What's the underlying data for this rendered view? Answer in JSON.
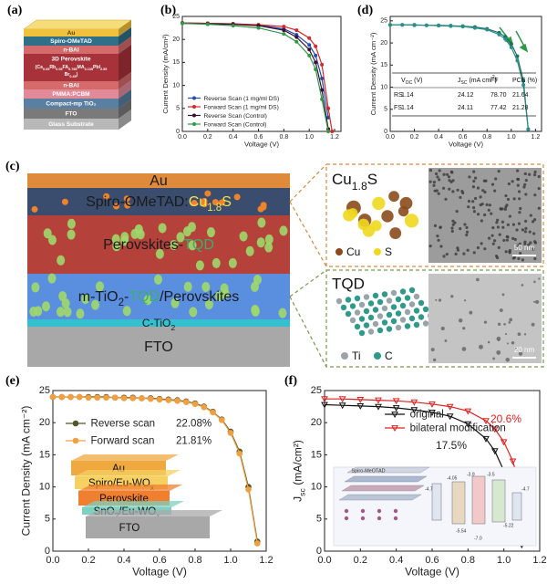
{
  "labels": {
    "a": "(a)",
    "b": "(b)",
    "c": "(c)",
    "d": "(d)",
    "e": "(e)",
    "f": "(f)"
  },
  "device_a": {
    "layers": [
      {
        "label": "Au",
        "color": "#f0c23c"
      },
      {
        "label": "Spiro-OMeTAD",
        "color": "#2f6f8a"
      },
      {
        "label": "n-BAI",
        "color": "#d46a6a"
      },
      {
        "label": "3D Perovskite",
        "formula": [
          [
            "(Cs",
            {
              "text": "0.05",
              "baseline": "sub"
            },
            "Rb",
            {
              "text": "0.05",
              "baseline": "sub"
            },
            "FA",
            {
              "text": "0.765",
              "baseline": "sub"
            },
            "MA",
            {
              "text": "0.135",
              "baseline": "sub"
            },
            "PbI",
            {
              "text": "2.55",
              "baseline": "sub"
            }
          ],
          [
            "Br",
            {
              "text": "0.45",
              "baseline": "sub"
            },
            ")"
          ]
        ],
        "color": "#a8323a"
      },
      {
        "label": "n-BAI",
        "color": "#d46a6a"
      },
      {
        "label": "PMMA:PCBM",
        "color": "#e28a9a"
      },
      {
        "label": "Compact-mp TiO₂",
        "color": "#5a7fa0"
      },
      {
        "label": "FTO",
        "color": "#7a7a7a"
      },
      {
        "label": "Glass Substrate",
        "color": "#b8b8b8"
      }
    ]
  },
  "device_c": {
    "layers": [
      {
        "label": "Au",
        "color": "#e08a3c"
      },
      {
        "label": [
          "Spiro-OMeTAD:",
          {
            "text": "Cu",
            "color": "#f2e34a"
          },
          {
            "text": "1.8",
            "baseline": "sub",
            "color": "#f2e34a"
          },
          {
            "text": "S",
            "color": "#f2e34a"
          }
        ],
        "color": "#3a4d6e"
      },
      {
        "label": [
          "Perovskites-",
          {
            "text": "TQD",
            "color": "#3cae6a"
          }
        ],
        "color": "#b4423a"
      },
      {
        "label": [
          "m-TiO",
          {
            "text": "2",
            "baseline": "sub"
          },
          "-",
          {
            "text": "TQD",
            "color": "#3cae6a"
          },
          "/Perovskites"
        ],
        "color": "#5a8fe0"
      },
      {
        "label": [
          "C-TiO",
          {
            "text": "2",
            "baseline": "sub"
          }
        ],
        "color": "#35c0d0"
      },
      {
        "label": "FTO",
        "color": "#a8a8a8"
      }
    ],
    "cu_inset": {
      "title": [
        "Cu",
        {
          "text": "1.8",
          "baseline": "sub"
        },
        "S"
      ],
      "legend": [
        {
          "label": "Cu",
          "color": "#8b4a1c"
        },
        {
          "label": "S",
          "color": "#f0d820"
        }
      ],
      "scale": "50 nm"
    },
    "tqd_inset": {
      "title": "TQD",
      "legend": [
        {
          "label": "Ti",
          "color": "#9aa4a8"
        },
        {
          "label": "C",
          "color": "#2f9a8a"
        }
      ],
      "scale": "20 nm"
    }
  },
  "inset_e": {
    "layers": [
      {
        "label": "Au",
        "color": "#f0a840"
      },
      {
        "label": [
          "Spiro/Eu-WO",
          {
            "text": "x",
            "baseline": "sub"
          }
        ],
        "color": "#f6d060"
      },
      {
        "label": "Perovskite",
        "color": "#f08030"
      },
      {
        "label": [
          "SnO",
          {
            "text": "2",
            "baseline": "sub"
          },
          "/Eu-WO",
          {
            "text": "x",
            "baseline": "sub"
          }
        ],
        "color": "#7fd0c0"
      },
      {
        "label": "FTO",
        "color": "#a8a8a8"
      }
    ]
  },
  "inset_f": {
    "title": "Spiro-MeOTAD",
    "levels": [
      "-4.7",
      "-4.05",
      "-3.9",
      "-3.5",
      "-5.54",
      "-7.0",
      "-4.7",
      "-5.22"
    ]
  },
  "table_d": {
    "header": [
      [
        "V",
        {
          "text": "OC",
          "baseline": "sub"
        },
        " (V)"
      ],
      [
        "J",
        {
          "text": "SC",
          "baseline": "sub"
        },
        " (mA cm",
        {
          "text": "-2",
          "baseline": "super"
        },
        ")"
      ],
      "FF",
      "PCE (%)"
    ],
    "rows": [
      [
        "RS",
        "1.14",
        "24.12",
        "78.70",
        "21.64"
      ],
      [
        "FS",
        "1.14",
        "24.11",
        "77.42",
        "21.28"
      ]
    ]
  },
  "chart_data": [
    {
      "type": "line",
      "xlabel": "Voltage (V)",
      "ylabel": "Current Density (mA/cm²)",
      "xlim": [
        0,
        1.25
      ],
      "xticks": [
        {
          "value": 0,
          "label": "0.0"
        },
        0.2,
        0.4,
        0.6,
        0.8,
        {
          "value": 1,
          "label": "1.0"
        },
        1.2
      ],
      "ylim": [
        0,
        25
      ],
      "yticks": [
        0,
        5,
        10,
        15,
        20,
        25
      ],
      "legend": "lower left",
      "x": [
        0,
        0.2,
        0.4,
        0.6,
        0.8,
        0.9,
        1.0,
        1.05,
        1.1,
        1.15,
        1.18
      ],
      "series": [
        {
          "name": "Reverse Scan (1 mg/ml DS)",
          "color": "#1f4fb0",
          "marker": "circle",
          "values": [
            23.6,
            23.5,
            23.4,
            23.1,
            22.3,
            21.0,
            18.8,
            16.5,
            11.5,
            3,
            null
          ]
        },
        {
          "name": "Forward Scan (1 mg/ml DS)",
          "color": "#d62828",
          "marker": "circle",
          "values": [
            23.6,
            23.5,
            23.4,
            23.2,
            22.8,
            22.0,
            20.3,
            18.5,
            14.5,
            5,
            0
          ]
        },
        {
          "name": "Reverse Scan (Control)",
          "color": "#3a1030",
          "marker": "circle",
          "values": [
            23.5,
            23.4,
            23.3,
            23.0,
            22.0,
            20.5,
            17.8,
            15,
            9,
            0.5,
            null
          ]
        },
        {
          "name": "Forward Scan (Control)",
          "color": "#2e9a48",
          "marker": "circle",
          "values": [
            23.5,
            23.3,
            23.0,
            22.5,
            21.2,
            19.5,
            16.5,
            13.5,
            7,
            0,
            null
          ]
        }
      ]
    },
    {
      "type": "line",
      "xlabel": "Voltage (V)",
      "ylabel": "Current Density (mA cm⁻²)",
      "xlim": [
        0,
        1.25
      ],
      "xticks": [
        {
          "value": 0,
          "label": "0.0"
        },
        0.2,
        0.4,
        0.6,
        0.8,
        {
          "value": 1,
          "label": "1.0"
        },
        1.2
      ],
      "ylim": [
        0,
        26
      ],
      "yticks": [
        0,
        5,
        10,
        15,
        20,
        25
      ],
      "x": [
        0,
        0.1,
        0.2,
        0.3,
        0.4,
        0.5,
        0.6,
        0.7,
        0.8,
        0.9,
        0.95,
        1.0,
        1.05,
        1.1,
        1.14
      ],
      "series": [
        {
          "color": "#1f6f5a",
          "marker": "circle",
          "values": [
            24.1,
            24.1,
            24.1,
            24.0,
            24.0,
            23.9,
            23.8,
            23.6,
            23.2,
            22.3,
            21.4,
            19.8,
            17.0,
            11.5,
            0.5
          ]
        },
        {
          "color": "#2a8f8a",
          "marker": "circle",
          "values": [
            24.1,
            24.1,
            24.0,
            24.0,
            23.9,
            23.8,
            23.7,
            23.4,
            23.0,
            21.9,
            20.9,
            19.0,
            16.0,
            10.5,
            0.5
          ]
        }
      ]
    },
    {
      "type": "line",
      "xlabel": "Voltage (V)",
      "ylabel": "Current Density (mA cm⁻²)",
      "xlim": [
        0,
        1.2
      ],
      "xticks": [
        {
          "value": 0,
          "label": "0.0"
        },
        0.2,
        0.4,
        0.6,
        0.8,
        {
          "value": 1,
          "label": "1.0"
        },
        1.2
      ],
      "ylim": [
        0,
        25
      ],
      "yticks": [
        0,
        5,
        10,
        15,
        20,
        25
      ],
      "legend": "left",
      "x": [
        0,
        0.05,
        0.1,
        0.15,
        0.2,
        0.25,
        0.3,
        0.35,
        0.4,
        0.45,
        0.5,
        0.55,
        0.6,
        0.65,
        0.7,
        0.75,
        0.8,
        0.85,
        0.9,
        0.95,
        1.0,
        1.05,
        1.1,
        1.15
      ],
      "series": [
        {
          "name": "Reverse scan",
          "pce": "22.08%",
          "color": "#55552a",
          "marker": "circle",
          "values": [
            24.0,
            24.0,
            24.0,
            24.0,
            24.0,
            24.0,
            24.0,
            23.9,
            23.9,
            23.9,
            23.8,
            23.8,
            23.7,
            23.6,
            23.5,
            23.3,
            23.0,
            22.5,
            21.7,
            20.5,
            18.6,
            15.5,
            10.0,
            1.5
          ]
        },
        {
          "name": "Forward scan",
          "pce": "21.81%",
          "color": "#f0a040",
          "marker": "circle",
          "values": [
            24.0,
            24.0,
            24.0,
            24.0,
            23.9,
            23.9,
            23.9,
            23.9,
            23.8,
            23.8,
            23.8,
            23.7,
            23.6,
            23.5,
            23.4,
            23.2,
            22.9,
            22.4,
            21.6,
            20.4,
            18.4,
            15.2,
            9.6,
            1.2
          ]
        }
      ]
    },
    {
      "type": "line",
      "xlabel": "Voltage (V)",
      "ylabel": [
        "J",
        {
          "text": "sc",
          "baseline": "sub"
        },
        " (mA/cm²)"
      ],
      "xlim": [
        0,
        1.2
      ],
      "xticks": [
        {
          "value": 0,
          "label": "0.0"
        },
        0.2,
        0.4,
        0.6,
        0.8,
        {
          "value": 1,
          "label": "1.0"
        },
        1.2
      ],
      "ylim": [
        0,
        25
      ],
      "yticks": [
        0,
        5,
        10,
        15,
        20,
        25
      ],
      "legend": "upper center",
      "annotations": [
        {
          "text": "17.5%",
          "color": "#222222"
        },
        {
          "text": "20.6%",
          "color": "#e02020"
        }
      ],
      "x": [
        0,
        0.1,
        0.2,
        0.3,
        0.4,
        0.5,
        0.6,
        0.7,
        0.8,
        0.9,
        0.95,
        1.0,
        1.05,
        1.1,
        1.15
      ],
      "series": [
        {
          "name": "original",
          "color": "#111111",
          "marker": "triangle",
          "values": [
            22.8,
            22.7,
            22.6,
            22.5,
            22.3,
            22.0,
            21.6,
            21.0,
            19.8,
            17.5,
            15.6,
            12.5,
            7.5,
            1.0,
            null
          ]
        },
        {
          "name": "bilateral modification",
          "color": "#e02020",
          "marker": "triangle",
          "values": [
            23.7,
            23.7,
            23.6,
            23.5,
            23.4,
            23.2,
            22.9,
            22.5,
            21.8,
            20.3,
            19.0,
            17.0,
            14.0,
            9.0,
            1.5
          ]
        }
      ]
    }
  ]
}
